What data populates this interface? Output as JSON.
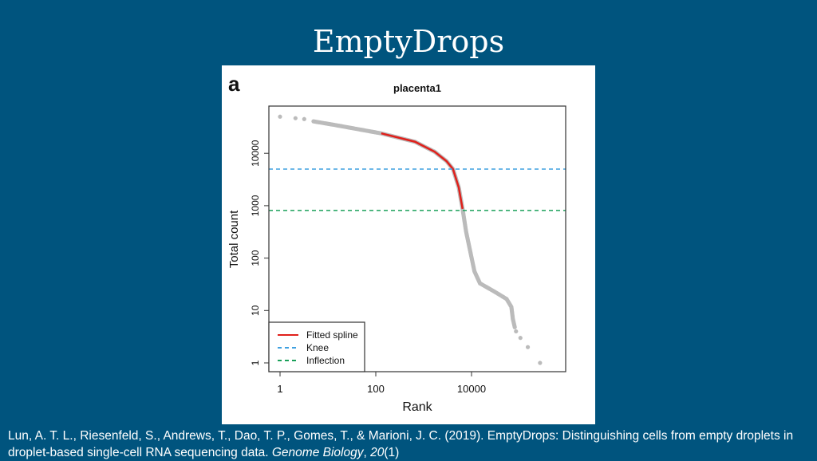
{
  "slide": {
    "title": "EmptyDrops",
    "citation": {
      "text": "Lun, A. T. L., Riesenfeld, S., Andrews, T., Dao, T. P., Gomes, T., & Marioni, J. C. (2019). EmptyDrops: Distinguishing cells from empty droplets in droplet-based single-cell RNA sequencing data. ",
      "journal": "Genome Biology",
      "sep": ", ",
      "volume": "20",
      "issue": "(1)"
    }
  },
  "chart_data": {
    "type": "scatter",
    "panel_label": "a",
    "title": "placenta1",
    "xlabel": "Rank",
    "ylabel": "Total count",
    "x_scale": "log",
    "y_scale": "log",
    "x_ticks": [
      "1",
      "100",
      "10000"
    ],
    "x_tick_values": [
      1,
      100,
      10000
    ],
    "y_ticks": [
      "1",
      "10",
      "100",
      "1000",
      "10000"
    ],
    "y_tick_values": [
      1,
      10,
      100,
      1000,
      10000
    ],
    "xlim": [
      0.6,
      900000
    ],
    "ylim": [
      0.7,
      80000
    ],
    "grid": false,
    "legend_position": "bottom-left",
    "legend": [
      {
        "label": "Fitted spline",
        "style": "solid",
        "color": "#e0201b"
      },
      {
        "label": "Knee",
        "style": "dashed",
        "color": "#3fa0e0"
      },
      {
        "label": "Inflection",
        "style": "dashed",
        "color": "#1aa05a"
      }
    ],
    "points_color": "#bbbbbb",
    "series": [
      {
        "x": 1,
        "y": 50000
      },
      {
        "x": 2.1,
        "y": 46800
      },
      {
        "x": 3.2,
        "y": 45000
      },
      {
        "x": 5,
        "y": 40700
      },
      {
        "x": 14,
        "y": 34700
      },
      {
        "x": 130,
        "y": 24000
      },
      {
        "x": 660,
        "y": 16600
      },
      {
        "x": 1700,
        "y": 10700
      },
      {
        "x": 3000,
        "y": 7100
      },
      {
        "x": 4100,
        "y": 5000
      },
      {
        "x": 5400,
        "y": 2240
      },
      {
        "x": 6500,
        "y": 870
      },
      {
        "x": 7700,
        "y": 320
      },
      {
        "x": 9800,
        "y": 112
      },
      {
        "x": 11500,
        "y": 56
      },
      {
        "x": 15000,
        "y": 33
      },
      {
        "x": 30000,
        "y": 23
      },
      {
        "x": 54000,
        "y": 16.6
      },
      {
        "x": 68000,
        "y": 11.7
      },
      {
        "x": 73000,
        "y": 6.9
      },
      {
        "x": 80000,
        "y": 4.8
      }
    ],
    "tail_points": [
      {
        "x": 85000,
        "y": 4
      },
      {
        "x": 105000,
        "y": 3
      },
      {
        "x": 150000,
        "y": 2
      },
      {
        "x": 270000,
        "y": 1
      }
    ],
    "fitted_spline_x_range": [
      130,
      6500
    ],
    "knee": 5000,
    "inflection": 810
  }
}
